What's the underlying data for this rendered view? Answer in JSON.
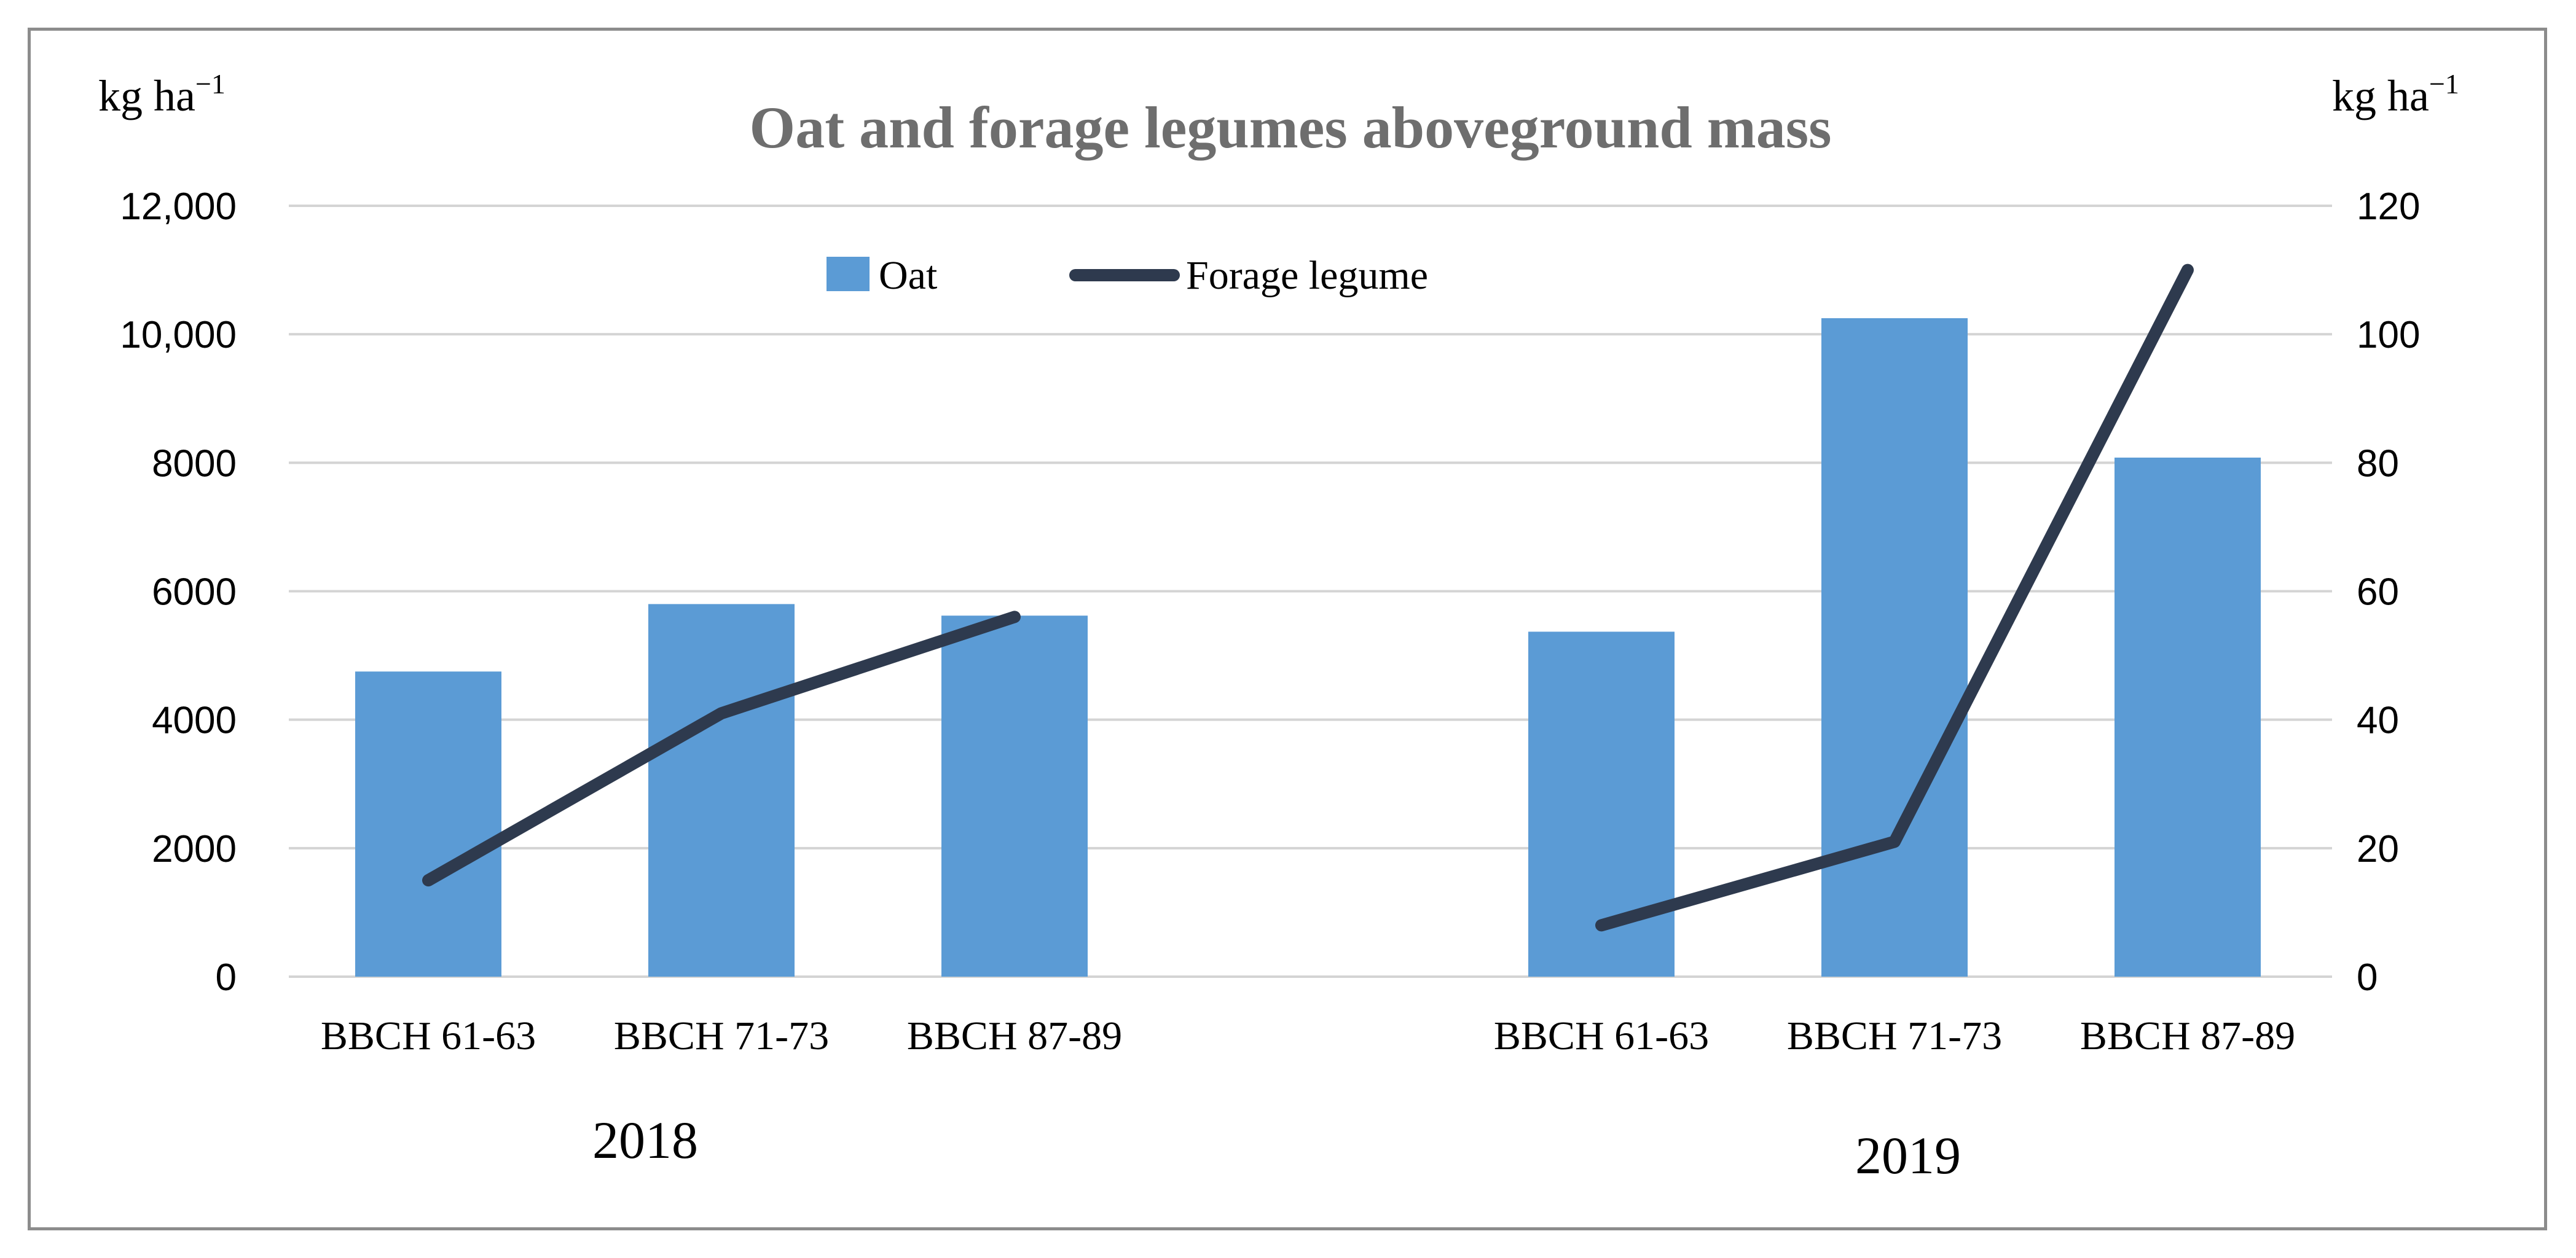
{
  "chart_data": {
    "type": "bar",
    "title": "Oat and forage legumes aboveground mass",
    "ylabel_left": {
      "base": "kg ha",
      "sup": "−1"
    },
    "ylabel_right": {
      "base": "kg ha",
      "sup": "−1"
    },
    "xlabel": "",
    "grid": true,
    "legend_position": "top-center",
    "groups": [
      {
        "label": "2018",
        "categories": [
          "BBCH 61-63",
          "BBCH 71-73",
          "BBCH 87-89"
        ]
      },
      {
        "label": "2019",
        "categories": [
          "BBCH 61-63",
          "BBCH 71-73",
          "BBCH 87-89"
        ]
      }
    ],
    "categories": [
      "BBCH 61-63",
      "BBCH 71-73",
      "BBCH 87-89",
      "BBCH 61-63",
      "BBCH 71-73",
      "BBCH 87-89"
    ],
    "left_axis": {
      "ylim": [
        0,
        12000
      ],
      "ticks": [
        0,
        2000,
        4000,
        6000,
        8000,
        10000,
        12000
      ],
      "tick_labels": [
        "0",
        "2000",
        "4000",
        "6000",
        "8000",
        "10,000",
        "12,000"
      ]
    },
    "right_axis": {
      "ylim": [
        0,
        120
      ],
      "ticks": [
        0,
        20,
        40,
        60,
        80,
        100,
        120
      ],
      "tick_labels": [
        "0",
        "20",
        "40",
        "60",
        "80",
        "100",
        "120"
      ]
    },
    "series": [
      {
        "name": "Oat",
        "type": "bar",
        "axis": "left",
        "color": "#5b9bd5",
        "segments": [
          [
            4750,
            5800,
            5620
          ],
          [
            5370,
            10250,
            8080
          ]
        ]
      },
      {
        "name": "Forage legume",
        "type": "line",
        "axis": "right",
        "color": "#2e3a4e",
        "segments": [
          [
            15,
            41,
            56
          ],
          [
            8,
            21,
            110
          ]
        ]
      }
    ]
  }
}
